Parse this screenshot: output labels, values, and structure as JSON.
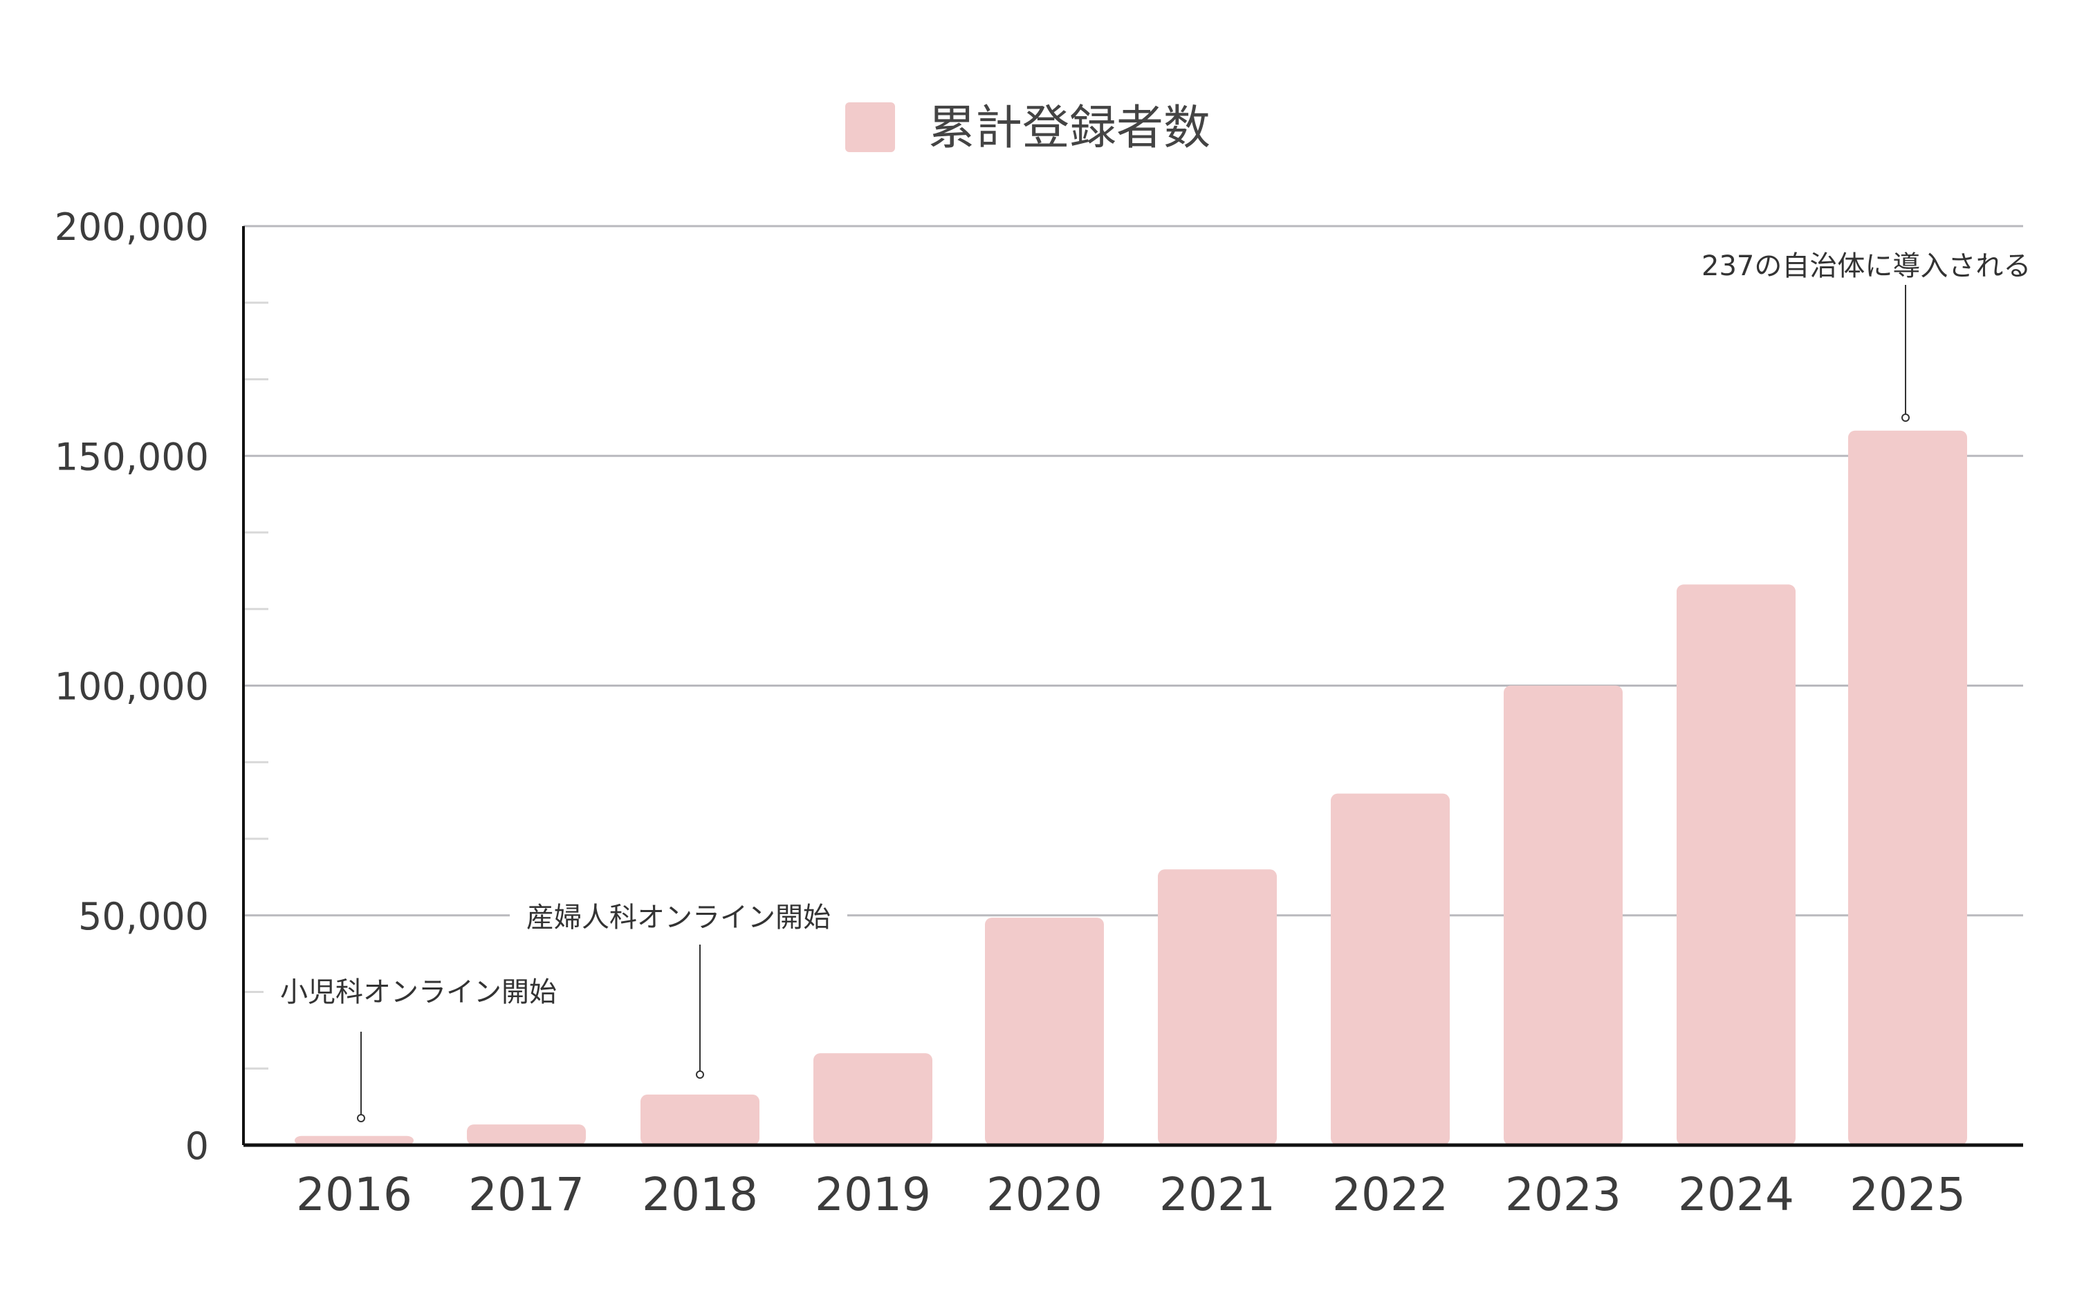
{
  "chart_data": {
    "type": "bar",
    "title": "",
    "xlabel": "",
    "ylabel": "",
    "legend": {
      "position": "top-center",
      "entries": [
        "累計登録者数"
      ]
    },
    "categories": [
      "2016",
      "2017",
      "2018",
      "2019",
      "2020",
      "2021",
      "2022",
      "2023",
      "2024",
      "2025"
    ],
    "series": [
      {
        "name": "累計登録者数",
        "color": "#f2cbcb",
        "values": [
          2000,
          4500,
          11000,
          20000,
          49500,
          60000,
          76500,
          100000,
          122000,
          155500
        ]
      }
    ],
    "ylim": [
      0,
      200000
    ],
    "yticks": [
      0,
      50000,
      100000,
      150000,
      200000
    ],
    "ytick_labels": [
      "0",
      "50,000",
      "100,000",
      "150,000",
      "200,000"
    ],
    "grid": true,
    "annotations": [
      {
        "category": "2016",
        "text": "小児科オンライン開始"
      },
      {
        "category": "2018",
        "text": "産婦人科オンライン開始"
      },
      {
        "category": "2025",
        "text": "237の自治体に導入される"
      }
    ]
  }
}
